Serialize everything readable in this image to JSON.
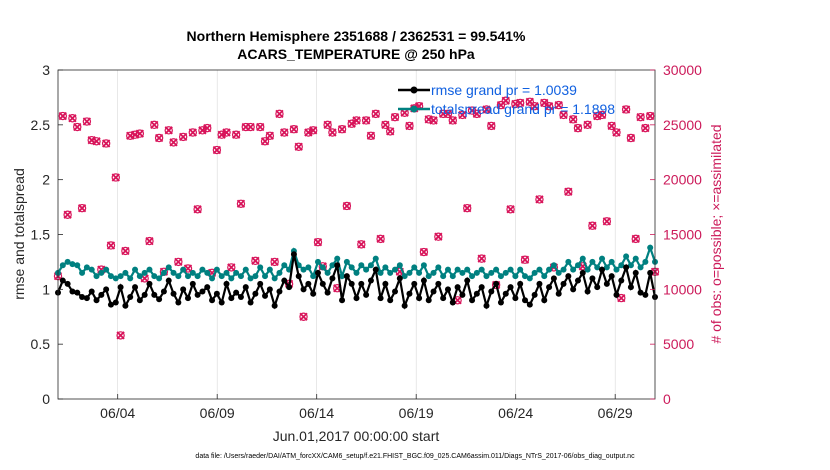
{
  "chart_data": {
    "type": "line",
    "title": "Northern Hemisphere 2351688 / 2362531 = 99.541%",
    "subtitle": "ACARS_TEMPERATURE @ 250 hPa",
    "xlabel": "Jun.01,2017 00:00:00 start",
    "ylabel": "rmse and totalspread",
    "y2label": "# of obs: o=possible; ×=assimilated",
    "footnote": "data file: /Users/raeder/DAI/ATM_forcXX/CAM6_setup/f.e21.FHIST_BGC.f09_025.CAM6assim.011/Diags_NTrS_2017-06/obs_diag_output.nc",
    "x_tick_labels": [
      "06/04",
      "06/09",
      "06/14",
      "06/19",
      "06/24",
      "06/29"
    ],
    "x_tick_values": [
      4,
      9,
      14,
      19,
      24,
      29
    ],
    "xlim": [
      1,
      31
    ],
    "ylim": [
      0,
      3
    ],
    "y_ticks": [
      "0",
      "0.5",
      "1",
      "1.5",
      "2",
      "2.5",
      "3"
    ],
    "y2lim": [
      0,
      30000
    ],
    "y2_ticks": [
      "0",
      "5000",
      "10000",
      "15000",
      "20000",
      "25000",
      "30000"
    ],
    "legend_position": "top-right",
    "colors": {
      "rmse": "#000000",
      "spread": "#008080",
      "obs": "#d8145a",
      "legend_text": "#1060e0"
    },
    "series": [
      {
        "name": "rmse grand pr = 1.0039",
        "axis": "left",
        "values": [
          0.97,
          1.08,
          1.05,
          0.98,
          0.97,
          0.93,
          0.92,
          0.98,
          0.9,
          0.95,
          1.0,
          0.86,
          0.88,
          1.02,
          0.85,
          0.93,
          1.02,
          0.9,
          0.95,
          1.05,
          0.95,
          0.91,
          0.98,
          1.08,
          0.96,
          0.88,
          1.0,
          0.92,
          1.05,
          0.95,
          0.98,
          1.02,
          0.9,
          0.96,
          0.88,
          1.05,
          0.92,
          0.97,
          0.93,
          1.02,
          0.88,
          0.96,
          1.05,
          0.94,
          1.0,
          0.85,
          0.98,
          1.08,
          1.02,
          1.32,
          1.12,
          1.0,
          1.05,
          0.96,
          1.15,
          1.05,
          0.97,
          1.1,
          1.22,
          0.9,
          1.12,
          1.05,
          0.92,
          1.05,
          0.95,
          1.08,
          1.18,
          0.92,
          1.05,
          0.9,
          0.98,
          1.1,
          0.85,
          0.96,
          1.05,
          0.92,
          1.08,
          0.9,
          0.98,
          1.05,
          0.92,
          1.0,
          0.88,
          1.02,
          0.95,
          1.08,
          0.9,
          0.96,
          1.02,
          0.85,
          0.98,
          1.05,
          0.88,
          0.96,
          1.02,
          0.92,
          1.05,
          0.9,
          0.86,
          0.95,
          1.05,
          0.9,
          1.02,
          1.1,
          0.96,
          1.05,
          1.12,
          1.0,
          1.08,
          1.15,
          0.98,
          1.1,
          1.02,
          1.18,
          1.05,
          1.12,
          0.95,
          1.08,
          1.2,
          1.02,
          1.15,
          0.97,
          0.95,
          1.15,
          0.93
        ]
      },
      {
        "name": "totalspread grand pr = 1.1898",
        "axis": "left",
        "values": [
          1.15,
          1.22,
          1.25,
          1.23,
          1.22,
          1.15,
          1.2,
          1.18,
          1.12,
          1.15,
          1.18,
          1.12,
          1.1,
          1.12,
          1.15,
          1.1,
          1.18,
          1.12,
          1.15,
          1.18,
          1.12,
          1.1,
          1.15,
          1.2,
          1.15,
          1.12,
          1.18,
          1.12,
          1.15,
          1.12,
          1.18,
          1.15,
          1.1,
          1.18,
          1.12,
          1.15,
          1.1,
          1.15,
          1.12,
          1.18,
          1.1,
          1.12,
          1.2,
          1.12,
          1.18,
          1.1,
          1.15,
          1.22,
          1.18,
          1.35,
          1.22,
          1.18,
          1.2,
          1.12,
          1.25,
          1.2,
          1.15,
          1.22,
          1.28,
          1.12,
          1.25,
          1.2,
          1.15,
          1.22,
          1.18,
          1.22,
          1.28,
          1.15,
          1.2,
          1.15,
          1.18,
          1.22,
          1.12,
          1.15,
          1.2,
          1.15,
          1.22,
          1.12,
          1.15,
          1.2,
          1.12,
          1.18,
          1.12,
          1.18,
          1.15,
          1.18,
          1.12,
          1.15,
          1.18,
          1.12,
          1.15,
          1.18,
          1.12,
          1.15,
          1.18,
          1.12,
          1.18,
          1.12,
          1.1,
          1.15,
          1.18,
          1.12,
          1.18,
          1.22,
          1.15,
          1.18,
          1.25,
          1.18,
          1.22,
          1.28,
          1.18,
          1.25,
          1.2,
          1.28,
          1.2,
          1.25,
          1.18,
          1.22,
          1.3,
          1.22,
          1.28,
          1.2,
          1.25,
          1.38,
          1.25
        ]
      },
      {
        "name": "# of obs (possible & assimilated)",
        "axis": "right",
        "values": [
          11200,
          25800,
          16800,
          25600,
          24800,
          17400,
          25300,
          23600,
          23500,
          11800,
          23300,
          14000,
          20200,
          5800,
          13500,
          24000,
          24100,
          24200,
          11000,
          14400,
          25000,
          23800,
          11600,
          24500,
          23400,
          12500,
          23900,
          11900,
          24300,
          17300,
          24500,
          24700,
          11500,
          22700,
          24100,
          24300,
          12000,
          24100,
          17800,
          24800,
          24800,
          12600,
          24800,
          23500,
          24000,
          12500,
          26000,
          24300,
          10500,
          24600,
          23000,
          7500,
          24300,
          24500,
          14300,
          12100,
          25000,
          24300,
          10100,
          24600,
          17600,
          25100,
          25400,
          14100,
          25400,
          24000,
          26000,
          14600,
          25000,
          24400,
          25700,
          11600,
          26100,
          24900,
          26500,
          26700,
          13400,
          25500,
          25400,
          14800,
          26000,
          26000,
          25400,
          9000,
          25900,
          17400,
          26300,
          26000,
          12800,
          26400,
          24900,
          10400,
          26800,
          27200,
          17300,
          26900,
          27000,
          12700,
          27100,
          26700,
          18200,
          27000,
          26700,
          12000,
          26800,
          25900,
          18900,
          25500,
          24700,
          12100,
          25000,
          15800,
          25800,
          25900,
          16200,
          24900,
          24300,
          9200,
          26400,
          23800,
          14600,
          25700,
          24700,
          25800,
          11600
        ]
      }
    ]
  }
}
